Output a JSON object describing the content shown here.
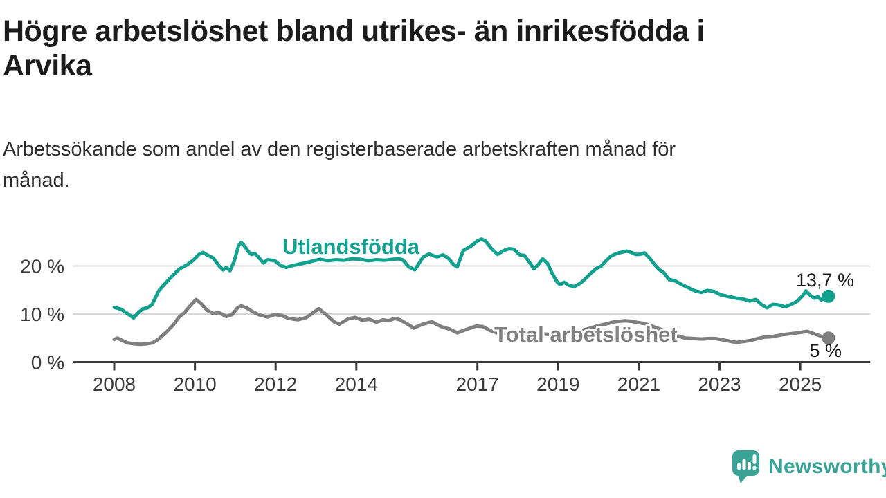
{
  "header": {
    "title_lines": [
      "Högre arbetslöshet bland utrikes- än inrikesfödda i",
      "Arvika"
    ],
    "subtitle_lines": [
      "Arbetssökande som andel av den registerbaserade arbetskraften månad för",
      "månad."
    ]
  },
  "footer": {
    "brand": "Newsworthy"
  },
  "colors": {
    "accent_teal": "#12a08f",
    "line_gray": "#7f7f7f",
    "grid": "#d8d8d8",
    "axis": "#3a3a3a",
    "text_dark": "#1c1c1c",
    "text_body": "#2d2d2d",
    "logo_teal": "#3aa396"
  },
  "chart_data": {
    "type": "line",
    "title": "Högre arbetslöshet bland utrikes- än inrikesfödda i Arvika",
    "subtitle": "Arbetssökande som andel av den registerbaserade arbetskraften månad för månad.",
    "unit": "%",
    "x_unit": "year (monthly data)",
    "grid": "horizontal only",
    "legend_position": "inline labels on lines",
    "x_axis": {
      "range": [
        2007.95,
        2026.7
      ],
      "ticks": [
        {
          "label": "2008",
          "year": 2008
        },
        {
          "label": "2010",
          "year": 2010
        },
        {
          "label": "2012",
          "year": 2012
        },
        {
          "label": "2014",
          "year": 2014
        },
        {
          "label": "2017",
          "year": 2017
        },
        {
          "label": "2019",
          "year": 2019
        },
        {
          "label": "2021",
          "year": 2021
        },
        {
          "label": "2023",
          "year": 2023
        },
        {
          "label": "2025",
          "year": 2025
        }
      ]
    },
    "y_axis": {
      "range": [
        0,
        27
      ],
      "ticks": [
        {
          "label": "0 %",
          "value": 0
        },
        {
          "label": "10 %",
          "value": 10
        },
        {
          "label": "20 %",
          "value": 20
        }
      ],
      "gridlines": [
        10,
        20
      ]
    },
    "series": [
      {
        "name": "Utlandsfödda",
        "color": "#12a08f",
        "end_label": "13,7 %",
        "end_value": 13.7,
        "points": [
          [
            2008.0,
            11.4
          ],
          [
            2008.17,
            11.0
          ],
          [
            2008.31,
            10.2
          ],
          [
            2008.48,
            9.2
          ],
          [
            2008.6,
            10.3
          ],
          [
            2008.71,
            11.1
          ],
          [
            2008.83,
            11.3
          ],
          [
            2008.94,
            12.0
          ],
          [
            2009.11,
            14.9
          ],
          [
            2009.28,
            16.5
          ],
          [
            2009.45,
            18.0
          ],
          [
            2009.62,
            19.4
          ],
          [
            2009.8,
            20.2
          ],
          [
            2009.96,
            21.2
          ],
          [
            2010.1,
            22.4
          ],
          [
            2010.2,
            22.8
          ],
          [
            2010.3,
            22.3
          ],
          [
            2010.45,
            21.7
          ],
          [
            2010.6,
            20.0
          ],
          [
            2010.7,
            19.2
          ],
          [
            2010.78,
            19.7
          ],
          [
            2010.87,
            19.0
          ],
          [
            2010.97,
            20.9
          ],
          [
            2011.08,
            24.2
          ],
          [
            2011.15,
            24.9
          ],
          [
            2011.25,
            23.9
          ],
          [
            2011.32,
            23.0
          ],
          [
            2011.4,
            22.4
          ],
          [
            2011.48,
            22.6
          ],
          [
            2011.58,
            21.8
          ],
          [
            2011.7,
            20.6
          ],
          [
            2011.8,
            21.3
          ],
          [
            2011.9,
            21.2
          ],
          [
            2011.98,
            21.1
          ],
          [
            2012.12,
            20.1
          ],
          [
            2012.26,
            19.7
          ],
          [
            2012.43,
            20.1
          ],
          [
            2012.6,
            20.4
          ],
          [
            2012.72,
            20.6
          ],
          [
            2012.95,
            21.1
          ],
          [
            2013.1,
            21.4
          ],
          [
            2013.3,
            21.1
          ],
          [
            2013.5,
            21.3
          ],
          [
            2013.7,
            21.2
          ],
          [
            2013.9,
            21.5
          ],
          [
            2014.1,
            21.4
          ],
          [
            2014.3,
            21.1
          ],
          [
            2014.5,
            21.3
          ],
          [
            2014.7,
            21.2
          ],
          [
            2014.9,
            21.4
          ],
          [
            2015.05,
            21.5
          ],
          [
            2015.15,
            21.3
          ],
          [
            2015.3,
            19.8
          ],
          [
            2015.45,
            19.2
          ],
          [
            2015.65,
            21.8
          ],
          [
            2015.8,
            22.5
          ],
          [
            2015.92,
            22.1
          ],
          [
            2016.0,
            21.9
          ],
          [
            2016.15,
            22.3
          ],
          [
            2016.28,
            21.6
          ],
          [
            2016.42,
            20.2
          ],
          [
            2016.5,
            19.8
          ],
          [
            2016.65,
            23.2
          ],
          [
            2016.85,
            24.2
          ],
          [
            2017.0,
            25.2
          ],
          [
            2017.1,
            25.6
          ],
          [
            2017.2,
            25.2
          ],
          [
            2017.35,
            23.6
          ],
          [
            2017.5,
            22.4
          ],
          [
            2017.65,
            23.2
          ],
          [
            2017.78,
            23.6
          ],
          [
            2017.9,
            23.5
          ],
          [
            2018.05,
            22.3
          ],
          [
            2018.16,
            22.2
          ],
          [
            2018.27,
            21.0
          ],
          [
            2018.4,
            19.4
          ],
          [
            2018.5,
            20.2
          ],
          [
            2018.62,
            21.5
          ],
          [
            2018.74,
            20.5
          ],
          [
            2018.85,
            18.5
          ],
          [
            2018.97,
            16.7
          ],
          [
            2019.05,
            16.1
          ],
          [
            2019.15,
            16.6
          ],
          [
            2019.26,
            16.0
          ],
          [
            2019.4,
            15.7
          ],
          [
            2019.55,
            16.4
          ],
          [
            2019.67,
            17.3
          ],
          [
            2019.8,
            18.4
          ],
          [
            2019.95,
            19.5
          ],
          [
            2020.06,
            19.9
          ],
          [
            2020.18,
            21.0
          ],
          [
            2020.3,
            22.0
          ],
          [
            2020.45,
            22.6
          ],
          [
            2020.6,
            22.9
          ],
          [
            2020.7,
            23.1
          ],
          [
            2020.82,
            22.8
          ],
          [
            2020.92,
            22.4
          ],
          [
            2021.02,
            22.4
          ],
          [
            2021.14,
            22.7
          ],
          [
            2021.26,
            21.7
          ],
          [
            2021.38,
            20.4
          ],
          [
            2021.5,
            19.3
          ],
          [
            2021.62,
            18.6
          ],
          [
            2021.75,
            17.2
          ],
          [
            2021.9,
            16.9
          ],
          [
            2022.05,
            16.2
          ],
          [
            2022.2,
            15.6
          ],
          [
            2022.4,
            14.8
          ],
          [
            2022.55,
            14.5
          ],
          [
            2022.7,
            14.9
          ],
          [
            2022.86,
            14.7
          ],
          [
            2023.03,
            14.0
          ],
          [
            2023.24,
            13.6
          ],
          [
            2023.42,
            13.3
          ],
          [
            2023.6,
            13.1
          ],
          [
            2023.75,
            12.7
          ],
          [
            2023.9,
            13.0
          ],
          [
            2024.05,
            11.9
          ],
          [
            2024.18,
            11.3
          ],
          [
            2024.32,
            12.0
          ],
          [
            2024.45,
            11.9
          ],
          [
            2024.63,
            11.5
          ],
          [
            2024.75,
            11.9
          ],
          [
            2024.92,
            12.6
          ],
          [
            2025.06,
            13.8
          ],
          [
            2025.14,
            14.8
          ],
          [
            2025.26,
            13.8
          ],
          [
            2025.35,
            13.3
          ],
          [
            2025.44,
            13.6
          ],
          [
            2025.52,
            12.9
          ],
          [
            2025.62,
            13.3
          ],
          [
            2025.7,
            13.7
          ]
        ]
      },
      {
        "name": "Total arbetslöshet",
        "color": "#7f7f7f",
        "end_label": "5 %",
        "end_value": 5.0,
        "points": [
          [
            2008.0,
            4.7
          ],
          [
            2008.08,
            5.0
          ],
          [
            2008.2,
            4.5
          ],
          [
            2008.33,
            4.0
          ],
          [
            2008.5,
            3.8
          ],
          [
            2008.65,
            3.7
          ],
          [
            2008.8,
            3.8
          ],
          [
            2008.95,
            4.0
          ],
          [
            2009.1,
            4.8
          ],
          [
            2009.3,
            6.3
          ],
          [
            2009.46,
            7.7
          ],
          [
            2009.6,
            9.3
          ],
          [
            2009.75,
            10.4
          ],
          [
            2009.9,
            11.9
          ],
          [
            2010.03,
            13.0
          ],
          [
            2010.15,
            12.2
          ],
          [
            2010.3,
            10.8
          ],
          [
            2010.45,
            10.1
          ],
          [
            2010.6,
            10.3
          ],
          [
            2010.78,
            9.5
          ],
          [
            2010.92,
            9.9
          ],
          [
            2011.06,
            11.3
          ],
          [
            2011.15,
            11.7
          ],
          [
            2011.3,
            11.2
          ],
          [
            2011.45,
            10.4
          ],
          [
            2011.6,
            9.8
          ],
          [
            2011.8,
            9.4
          ],
          [
            2011.98,
            9.9
          ],
          [
            2012.15,
            9.7
          ],
          [
            2012.32,
            9.1
          ],
          [
            2012.55,
            8.8
          ],
          [
            2012.77,
            9.3
          ],
          [
            2012.9,
            10.1
          ],
          [
            2013.07,
            11.1
          ],
          [
            2013.24,
            10.0
          ],
          [
            2013.46,
            8.3
          ],
          [
            2013.58,
            7.9
          ],
          [
            2013.8,
            9.0
          ],
          [
            2013.97,
            9.3
          ],
          [
            2014.15,
            8.7
          ],
          [
            2014.32,
            8.9
          ],
          [
            2014.5,
            8.3
          ],
          [
            2014.66,
            8.8
          ],
          [
            2014.8,
            8.6
          ],
          [
            2014.95,
            9.1
          ],
          [
            2015.08,
            8.8
          ],
          [
            2015.25,
            8.0
          ],
          [
            2015.42,
            7.1
          ],
          [
            2015.65,
            7.9
          ],
          [
            2015.87,
            8.4
          ],
          [
            2016.1,
            7.4
          ],
          [
            2016.33,
            6.8
          ],
          [
            2016.5,
            6.1
          ],
          [
            2016.73,
            6.8
          ],
          [
            2016.97,
            7.5
          ],
          [
            2017.13,
            7.4
          ],
          [
            2017.31,
            6.6
          ],
          [
            2017.48,
            6.1
          ],
          [
            2017.7,
            6.0
          ],
          [
            2017.9,
            6.2
          ],
          [
            2018.1,
            6.4
          ],
          [
            2018.35,
            6.2
          ],
          [
            2018.6,
            5.9
          ],
          [
            2018.85,
            5.7
          ],
          [
            2019.1,
            5.9
          ],
          [
            2019.35,
            6.2
          ],
          [
            2019.6,
            6.6
          ],
          [
            2019.85,
            7.2
          ],
          [
            2020.0,
            7.6
          ],
          [
            2020.17,
            7.9
          ],
          [
            2020.4,
            8.4
          ],
          [
            2020.65,
            8.6
          ],
          [
            2020.8,
            8.5
          ],
          [
            2021.0,
            8.2
          ],
          [
            2021.15,
            8.0
          ],
          [
            2021.35,
            7.4
          ],
          [
            2021.55,
            6.8
          ],
          [
            2021.75,
            6.2
          ],
          [
            2021.95,
            5.5
          ],
          [
            2022.15,
            5.0
          ],
          [
            2022.35,
            4.9
          ],
          [
            2022.55,
            4.8
          ],
          [
            2022.75,
            4.9
          ],
          [
            2022.9,
            4.9
          ],
          [
            2023.1,
            4.6
          ],
          [
            2023.28,
            4.3
          ],
          [
            2023.42,
            4.1
          ],
          [
            2023.6,
            4.3
          ],
          [
            2023.77,
            4.5
          ],
          [
            2023.95,
            4.9
          ],
          [
            2024.1,
            5.2
          ],
          [
            2024.3,
            5.3
          ],
          [
            2024.55,
            5.7
          ],
          [
            2024.85,
            6.0
          ],
          [
            2025.03,
            6.2
          ],
          [
            2025.17,
            6.4
          ],
          [
            2025.38,
            5.8
          ],
          [
            2025.55,
            5.3
          ],
          [
            2025.7,
            5.0
          ]
        ]
      }
    ]
  }
}
